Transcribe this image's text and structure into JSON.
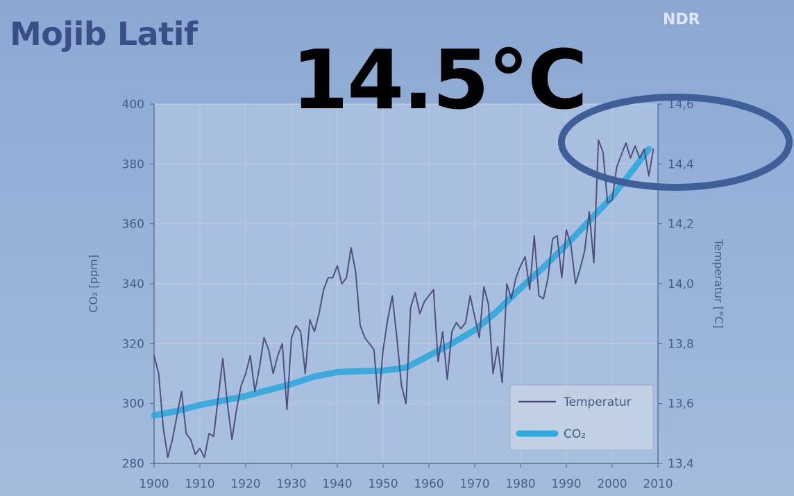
{
  "overlay": {
    "presenter_name": "Mojib Latif",
    "channel_logo": "NDR",
    "highlight_value": "14.5°C"
  },
  "colors": {
    "background": "#94b0d8",
    "grid": "#bcc9df",
    "axis_text": "#4a5f86",
    "temperature_line": "#4a4a7a",
    "co2_line": "#2ea9dc",
    "highlight_ellipse": "#3f5f98",
    "legend_bg": "#c2d0e4"
  },
  "chart_data": {
    "type": "line",
    "xlabel": "",
    "ylabel_left": "CO₂ [ppm]",
    "ylabel_right": "Temperatur [°C]",
    "xlim": [
      1900,
      2010
    ],
    "ylim_left": [
      280,
      400
    ],
    "ylim_right": [
      13.4,
      14.6
    ],
    "x_ticks": [
      1900,
      1910,
      1920,
      1930,
      1940,
      1950,
      1960,
      1970,
      1980,
      1990,
      2000,
      2010
    ],
    "y_ticks_left": [
      280,
      300,
      320,
      340,
      360,
      380,
      400
    ],
    "y_ticks_right": [
      "13,4",
      "13,6",
      "13,8",
      "14,0",
      "14,2",
      "14,4",
      "14,6"
    ],
    "grid": true,
    "legend_position": "bottom-right",
    "series": [
      {
        "name": "Temperatur",
        "axis": "right",
        "x": [
          1900,
          1901,
          1902,
          1903,
          1904,
          1905,
          1906,
          1907,
          1908,
          1909,
          1910,
          1911,
          1912,
          1913,
          1914,
          1915,
          1916,
          1917,
          1918,
          1919,
          1920,
          1921,
          1922,
          1923,
          1924,
          1925,
          1926,
          1927,
          1928,
          1929,
          1930,
          1931,
          1932,
          1933,
          1934,
          1935,
          1936,
          1937,
          1938,
          1939,
          1940,
          1941,
          1942,
          1943,
          1944,
          1945,
          1946,
          1947,
          1948,
          1949,
          1950,
          1951,
          1952,
          1953,
          1954,
          1955,
          1956,
          1957,
          1958,
          1959,
          1960,
          1961,
          1962,
          1963,
          1964,
          1965,
          1966,
          1967,
          1968,
          1969,
          1970,
          1971,
          1972,
          1973,
          1974,
          1975,
          1976,
          1977,
          1978,
          1979,
          1980,
          1981,
          1982,
          1983,
          1984,
          1985,
          1986,
          1987,
          1988,
          1989,
          1990,
          1991,
          1992,
          1993,
          1994,
          1995,
          1996,
          1997,
          1998,
          1999,
          2000,
          2001,
          2002,
          2003,
          2004,
          2005,
          2006,
          2007,
          2008,
          2009
        ],
        "values": [
          13.76,
          13.7,
          13.52,
          13.42,
          13.48,
          13.56,
          13.64,
          13.5,
          13.48,
          13.43,
          13.45,
          13.42,
          13.5,
          13.49,
          13.62,
          13.75,
          13.6,
          13.48,
          13.58,
          13.66,
          13.7,
          13.76,
          13.64,
          13.72,
          13.82,
          13.78,
          13.7,
          13.76,
          13.8,
          13.58,
          13.82,
          13.86,
          13.84,
          13.7,
          13.88,
          13.84,
          13.9,
          13.98,
          14.02,
          14.02,
          14.06,
          14.0,
          14.02,
          14.12,
          14.04,
          13.86,
          13.82,
          13.8,
          13.78,
          13.6,
          13.78,
          13.88,
          13.96,
          13.82,
          13.66,
          13.6,
          13.92,
          13.97,
          13.9,
          13.94,
          13.96,
          13.98,
          13.74,
          13.84,
          13.68,
          13.84,
          13.87,
          13.85,
          13.87,
          13.96,
          13.89,
          13.82,
          13.99,
          13.93,
          13.7,
          13.79,
          13.67,
          14.0,
          13.95,
          14.02,
          14.06,
          14.09,
          13.98,
          14.16,
          13.96,
          13.95,
          14.02,
          14.15,
          14.16,
          14.02,
          14.18,
          14.13,
          14.0,
          14.05,
          14.11,
          14.24,
          14.07,
          14.48,
          14.44,
          14.27,
          14.28,
          14.39,
          14.43,
          14.47,
          14.42,
          14.46,
          14.42,
          14.45,
          14.36,
          14.45
        ]
      },
      {
        "name": "CO₂",
        "axis": "left",
        "x": [
          1900,
          1905,
          1910,
          1915,
          1920,
          1925,
          1930,
          1935,
          1940,
          1945,
          1950,
          1955,
          1960,
          1965,
          1970,
          1975,
          1980,
          1985,
          1990,
          1995,
          2000,
          2005,
          2008
        ],
        "values": [
          296,
          297.5,
          299.5,
          301,
          302.5,
          304.5,
          306.5,
          309,
          310.5,
          310.8,
          311,
          312,
          316,
          320,
          324.5,
          331,
          338.5,
          345.5,
          353,
          361,
          369,
          379,
          385
        ]
      }
    ]
  }
}
